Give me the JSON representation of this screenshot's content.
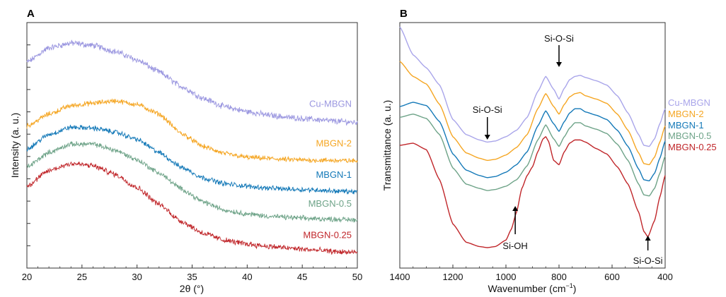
{
  "chart_data": [
    {
      "panel_label": "A",
      "type": "line",
      "xlabel": "2θ (°)",
      "ylabel": "Intensity (a. u.)",
      "xlim": [
        20,
        50
      ],
      "xticks": [
        "20",
        "25",
        "30",
        "35",
        "40",
        "45",
        "50"
      ],
      "series": [
        {
          "name": "Cu-MBGN",
          "color": "#9b97e0",
          "noise": 0.9,
          "x": [
            20,
            22,
            24,
            26,
            28,
            30,
            32,
            34,
            36,
            38,
            40,
            42,
            44,
            46,
            48,
            50
          ],
          "y": [
            8.35,
            8.95,
            9.15,
            9.05,
            8.8,
            8.45,
            7.95,
            7.35,
            6.85,
            6.5,
            6.3,
            6.15,
            6.05,
            5.98,
            5.9,
            5.85
          ]
        },
        {
          "name": "MBGN-2",
          "color": "#f5a623",
          "noise": 0.7,
          "x": [
            20,
            22,
            24,
            26,
            28,
            30,
            32,
            34,
            36,
            38,
            40,
            42,
            44,
            46,
            48,
            50
          ],
          "y": [
            5.7,
            6.2,
            6.55,
            6.65,
            6.75,
            6.6,
            6.2,
            5.4,
            4.85,
            4.55,
            4.4,
            4.35,
            4.3,
            4.28,
            4.27,
            4.25
          ]
        },
        {
          "name": "MBGN-1",
          "color": "#1479b8",
          "noise": 0.7,
          "x": [
            20,
            22,
            24,
            26,
            28,
            30,
            32,
            34,
            36,
            38,
            40,
            42,
            44,
            46,
            48,
            50
          ],
          "y": [
            4.75,
            5.35,
            5.65,
            5.62,
            5.45,
            5.15,
            4.6,
            4.0,
            3.55,
            3.3,
            3.2,
            3.12,
            3.08,
            3.05,
            3.0,
            2.97
          ]
        },
        {
          "name": "MBGN-0.5",
          "color": "#6ea388",
          "noise": 0.7,
          "x": [
            20,
            22,
            24,
            26,
            28,
            30,
            32,
            34,
            36,
            38,
            40,
            42,
            44,
            46,
            48,
            50
          ],
          "y": [
            4.0,
            4.6,
            4.95,
            4.95,
            4.7,
            4.3,
            3.75,
            3.1,
            2.55,
            2.2,
            2.05,
            1.95,
            1.9,
            1.85,
            1.83,
            1.8
          ]
        },
        {
          "name": "MBGN-0.25",
          "color": "#c0262a",
          "noise": 0.8,
          "x": [
            20,
            22,
            24,
            26,
            28,
            30,
            32,
            34,
            36,
            38,
            40,
            42,
            44,
            46,
            48,
            50
          ],
          "y": [
            3.2,
            3.85,
            4.15,
            4.05,
            3.7,
            3.15,
            2.45,
            1.75,
            1.25,
            0.95,
            0.8,
            0.7,
            0.62,
            0.55,
            0.48,
            0.45
          ]
        }
      ]
    },
    {
      "panel_label": "B",
      "type": "line",
      "xlabel": "Wavenumber (cm⁻¹)",
      "ylabel": "Transmittance (a. u.)",
      "xlim": [
        1400,
        400
      ],
      "xticks": [
        "1400",
        "1200",
        "1000",
        "800",
        "600",
        "400"
      ],
      "series": [
        {
          "name": "Cu-MBGN",
          "color": "#a9a5ea",
          "x": [
            1400,
            1350,
            1300,
            1250,
            1200,
            1150,
            1100,
            1070,
            1040,
            1000,
            960,
            920,
            880,
            850,
            820,
            800,
            780,
            760,
            740,
            720,
            700,
            660,
            620,
            580,
            540,
            500,
            480,
            460,
            440,
            420,
            400
          ],
          "y": [
            10.4,
            9.1,
            8.5,
            7.7,
            6.1,
            5.4,
            5.15,
            5.05,
            5.1,
            5.3,
            5.6,
            6.2,
            7.4,
            8.1,
            7.5,
            7.05,
            7.55,
            7.95,
            8.1,
            8.15,
            8.05,
            7.9,
            7.7,
            7.2,
            6.4,
            5.4,
            4.9,
            4.85,
            5.2,
            5.9,
            6.6
          ]
        },
        {
          "name": "MBGN-2",
          "color": "#f5a623",
          "x": [
            1400,
            1350,
            1300,
            1250,
            1200,
            1150,
            1100,
            1070,
            1040,
            1000,
            960,
            920,
            880,
            850,
            820,
            800,
            780,
            760,
            740,
            720,
            700,
            660,
            620,
            580,
            540,
            500,
            480,
            460,
            440,
            420,
            400
          ],
          "y": [
            8.8,
            8.1,
            7.75,
            6.8,
            5.3,
            4.55,
            4.3,
            4.2,
            4.25,
            4.45,
            4.8,
            5.4,
            6.6,
            7.3,
            6.7,
            6.35,
            6.8,
            7.15,
            7.3,
            7.35,
            7.2,
            7.05,
            6.85,
            6.35,
            5.6,
            4.55,
            4.05,
            4.0,
            4.35,
            5.05,
            5.8
          ]
        },
        {
          "name": "MBGN-1",
          "color": "#1479b8",
          "x": [
            1400,
            1350,
            1300,
            1250,
            1200,
            1150,
            1100,
            1070,
            1040,
            1000,
            960,
            920,
            880,
            850,
            820,
            800,
            780,
            760,
            740,
            720,
            700,
            660,
            620,
            580,
            540,
            500,
            480,
            460,
            440,
            420,
            400
          ],
          "y": [
            6.7,
            6.9,
            6.75,
            6.0,
            4.5,
            3.75,
            3.5,
            3.4,
            3.45,
            3.65,
            4.0,
            4.6,
            5.8,
            6.5,
            5.9,
            5.55,
            6.0,
            6.4,
            6.6,
            6.6,
            6.45,
            6.3,
            6.1,
            5.6,
            4.85,
            3.8,
            3.3,
            3.25,
            3.6,
            4.3,
            5.1
          ]
        },
        {
          "name": "MBGN-0.5",
          "color": "#6ea388",
          "x": [
            1400,
            1350,
            1300,
            1250,
            1200,
            1150,
            1100,
            1070,
            1040,
            1000,
            960,
            920,
            880,
            850,
            820,
            800,
            780,
            760,
            740,
            720,
            700,
            660,
            620,
            580,
            540,
            500,
            480,
            460,
            440,
            420,
            400
          ],
          "y": [
            6.2,
            6.35,
            6.15,
            5.4,
            3.85,
            3.1,
            2.9,
            2.8,
            2.85,
            3.0,
            3.3,
            3.95,
            5.15,
            5.85,
            5.2,
            4.85,
            5.3,
            5.7,
            5.95,
            5.95,
            5.8,
            5.65,
            5.45,
            4.95,
            4.2,
            3.1,
            2.6,
            2.55,
            2.9,
            3.6,
            4.4
          ]
        },
        {
          "name": "MBGN-0.25",
          "color": "#c0262a",
          "x": [
            1400,
            1350,
            1300,
            1250,
            1200,
            1150,
            1100,
            1070,
            1040,
            1000,
            980,
            960,
            940,
            920,
            900,
            880,
            860,
            850,
            840,
            820,
            800,
            780,
            760,
            740,
            720,
            700,
            660,
            620,
            580,
            540,
            500,
            480,
            465,
            440,
            420,
            400
          ],
          "y": [
            4.9,
            5.0,
            4.7,
            3.3,
            1.25,
            0.4,
            0.2,
            0.15,
            0.2,
            0.5,
            1.0,
            1.8,
            2.9,
            3.5,
            3.9,
            4.6,
            5.2,
            5.3,
            5.1,
            4.2,
            4.0,
            4.6,
            5.0,
            5.15,
            5.15,
            5.05,
            4.75,
            4.5,
            3.9,
            3.1,
            1.8,
            0.9,
            0.65,
            1.4,
            2.5,
            3.5
          ]
        }
      ]
    }
  ],
  "annotations_b": [
    {
      "label": "Si-O-Si",
      "x": 800
    },
    {
      "label": "Si-O-Si",
      "x": 1070
    },
    {
      "label": "Si-OH",
      "x": 965
    },
    {
      "label": "Si-O-Si",
      "x": 465
    }
  ]
}
